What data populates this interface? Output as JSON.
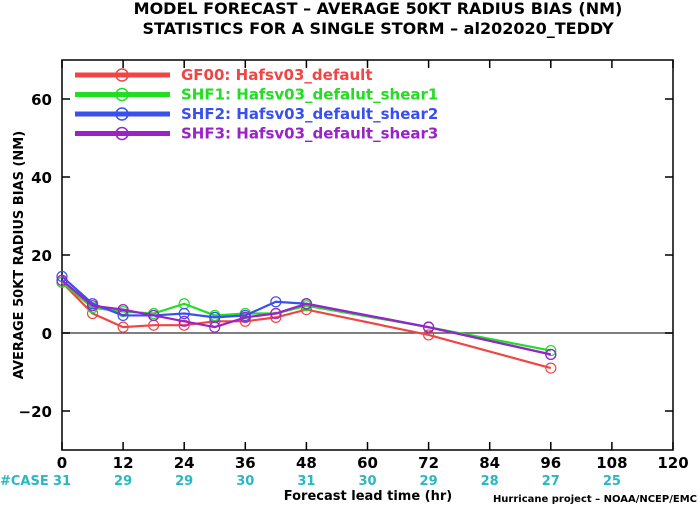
{
  "chart_data": {
    "type": "line",
    "title": "MODEL FORECAST – AVERAGE 50KT RADIUS BIAS (NM)",
    "subtitle": "STATISTICS FOR A SINGLE STORM – al202020_TEDDY",
    "xlabel": "Forecast lead time (hr)",
    "ylabel": "AVERAGE 50KT RADIUS BIAS (NM)",
    "xlim": [
      0,
      120
    ],
    "ylim": [
      -30,
      70
    ],
    "xticks": [
      0,
      12,
      24,
      36,
      48,
      60,
      72,
      84,
      96,
      108,
      120
    ],
    "yticks": [
      -20,
      0,
      20,
      40,
      60
    ],
    "reference_line": 0,
    "case_label": "#CASE",
    "case_counts": [
      31,
      29,
      29,
      30,
      31,
      30,
      29,
      28,
      27,
      25
    ],
    "credit": "Hurricane project – NOAA/NCEP/EMC",
    "legend_position": "top-left",
    "series": [
      {
        "name": "GF00: Hafsv03_default",
        "color": "#f04545",
        "x": [
          0,
          6,
          12,
          18,
          24,
          30,
          36,
          42,
          48,
          72,
          96
        ],
        "y": [
          13,
          5,
          1.5,
          2,
          2,
          3,
          3,
          4,
          6,
          -0.5,
          -9
        ]
      },
      {
        "name": "SHF1: Hafsv03_defalut_shear1",
        "color": "#22dd22",
        "x": [
          0,
          6,
          12,
          18,
          24,
          30,
          36,
          42,
          48,
          72,
          96
        ],
        "y": [
          13,
          6.5,
          5.5,
          5,
          7.5,
          4.5,
          5,
          5,
          7,
          1.5,
          -4.5
        ]
      },
      {
        "name": "SHF2: Hafsv03_default_shear2",
        "color": "#3a4ff0",
        "x": [
          0,
          6,
          12,
          18,
          24,
          30,
          36,
          42,
          48,
          72,
          96
        ],
        "y": [
          14.5,
          7.5,
          4.5,
          4.5,
          5,
          4,
          4.5,
          8,
          7.5,
          1.5,
          -5.5
        ]
      },
      {
        "name": "SHF3: Hafsv03_default_shear3",
        "color": "#9a22c8",
        "x": [
          0,
          6,
          12,
          18,
          24,
          30,
          36,
          42,
          48,
          72,
          96
        ],
        "y": [
          13.5,
          7,
          6,
          4.5,
          3,
          1.5,
          4,
          5,
          7.5,
          1.5,
          -5.5
        ]
      }
    ]
  }
}
